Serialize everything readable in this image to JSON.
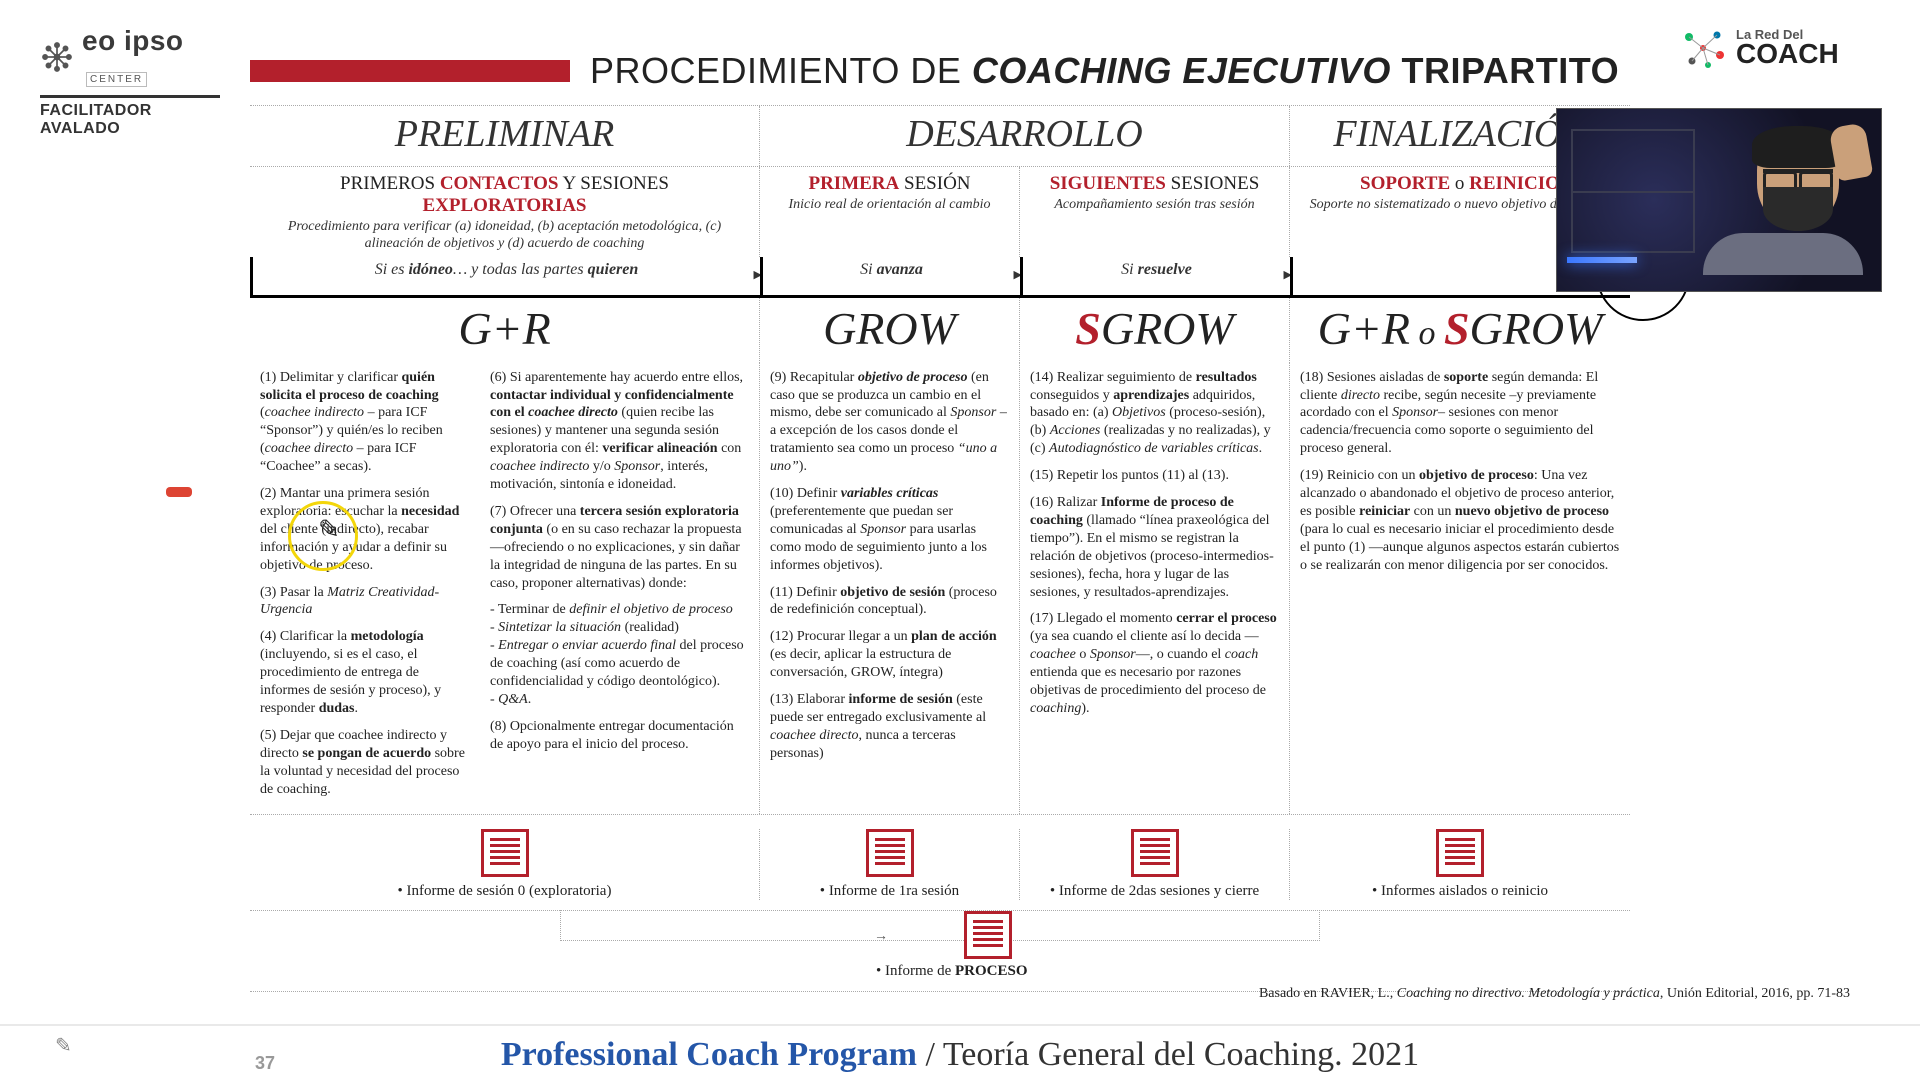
{
  "slide_number": "37",
  "logos": {
    "left": {
      "main": "eo ipso",
      "tag": "CENTER",
      "sub": "FACILITADOR AVALADO"
    },
    "right": {
      "small": "La Red Del",
      "big": "COACH"
    }
  },
  "title": {
    "prefix": "PROCEDIMIENTO DE",
    "italic": "COACHING EJECUTIVO",
    "suffix": "TRIPARTITO",
    "bar_color": "#b3202c"
  },
  "phases": {
    "p1": "PRELIMINAR",
    "p2": "DESARROLLO",
    "p3": "FINALIZACIÓN"
  },
  "headers": {
    "c1": {
      "t1": "PRIMEROS ",
      "t2": "CONTACTOS",
      "t3": " Y SESIONES  ",
      "t4": "EXPLORATORIAS",
      "sub": "Procedimiento para verificar (a) idoneidad, (b) aceptación metodológica, (c) alineación de objetivos y (d) acuerdo de coaching"
    },
    "c2": {
      "t2": "PRIMERA",
      "t3": " SESIÓN",
      "sub": "Inicio real de orientación al cambio"
    },
    "c3": {
      "t2": "SIGUIENTES",
      "t3": " SESIONES",
      "sub": "Acompañamiento sesión tras sesión"
    },
    "c4": {
      "t2": "SOPORTE",
      "mid": " o ",
      "t3": "REINICIO",
      "sub": "Soporte no sistematizado o nuevo objetivo de proceso"
    }
  },
  "timeline": {
    "t1": {
      "pre": "Si es ",
      "b": "idóneo",
      "post": "… y todas las partes ",
      "b2": "quieren"
    },
    "t2": {
      "pre": "Si ",
      "b": "avanza"
    },
    "t3": {
      "pre": "Si ",
      "b": "resuelve"
    }
  },
  "methods": {
    "m1": "G+R",
    "m2": "GROW",
    "m3_pre": "S",
    "m3": "GROW",
    "m4_1": "G+R",
    "m4_mid": " o ",
    "m4_2pre": "S",
    "m4_2": "GROW"
  },
  "body": {
    "c1a": [
      "(1) Delimitar y clarificar <b>quién solicita el proceso de coaching</b> (<i>coachee indirecto</i> – para ICF “Sponsor”) y quién/es lo reciben (<i>coachee directo</i> – para ICF “Coachee” a secas).",
      "(2) Mantar una primera sesión exploratoria: escuchar la <b>necesidad</b> del cliente (indirecto), recabar información y ayudar a definir su objetivo de proceso.",
      "(3) Pasar la <i>Matriz Creatividad-Urgencia</i>",
      "(4) Clarificar la <b>metodología</b> (incluyendo, si es el caso, el procedimiento de entrega de informes de sesión y proceso), y responder <b>dudas</b>.",
      "(5) Dejar que coachee indirecto y directo <b>se pongan de acuerdo</b> sobre la voluntad y necesidad del proceso de coaching."
    ],
    "c1b": [
      "(6) Si aparentemente hay acuerdo entre ellos, <b>contactar individual y confidencialmente con el <i>coachee directo</i></b> (quien recibe las sesiones) y mantener una segunda sesión exploratoria con él: <b>verificar alineación</b> con <i>coachee indirecto</i> y/o <i>Sponsor</i>, interés, motivación, sintonía e idoneidad.",
      "(7) Ofrecer una <b>tercera sesión exploratoria conjunta</b> (o en su caso rechazar la propuesta —ofreciendo o no explicaciones, y sin dañar la integridad de ninguna de las partes. En su caso, proponer alternativas) donde:",
      "- Terminar de <i>definir el objetivo de proceso</i><br>- <i>Sintetizar la situación</i> (realidad)<br>- <i>Entregar o enviar acuerdo final</i> del proceso de coaching (así como acuerdo de confidencialidad y código deontológico).<br>- <i>Q&A</i>.",
      "(8) Opcionalmente entregar documentación de apoyo para el inicio del proceso."
    ],
    "c2": [
      "(9) Recapitular <b><i>objetivo de proceso</i></b> (en caso que se produzca un cambio en el mismo, debe ser comunicado al <i>Sponsor</i> –a excepción de los casos donde el tratamiento sea como un proceso <i>“uno a uno”</i>).",
      "(10) Definir <b><i>variables críticas</i></b> (preferentemente que puedan ser comunicadas al <i>Sponsor</i> para usarlas como modo de seguimiento junto a los informes objetivos).",
      "(11) Definir <b>objetivo de sesión</b> (proceso de redefinición conceptual).",
      "(12) Procurar llegar a un <b>plan de acción</b> (es decir, aplicar la estructura de conversación, GROW, íntegra)",
      "(13) Elaborar <b>informe de sesión</b> (este puede ser entregado exclusivamente al <i>coachee directo</i>, nunca a terceras personas)"
    ],
    "c3": [
      "(14) Realizar seguimiento de <b>resultados</b> conseguidos y <b>aprendizajes</b> adquiridos, basado en: (a) <i>Objetivos</i> (proceso-sesión), (b) <i>Acciones</i> (realizadas y no realizadas), y (c) <i>Autodiagnóstico de variables críticas</i>.",
      "(15) Repetir los puntos (11) al (13).",
      "(16) Ralizar <b>Informe de proceso de coaching</b> (llamado “línea praxeológica del tiempo”). En el mismo se registran la relación de objetivos (proceso-intermedios-sesiones), fecha, hora y lugar de las sesiones, y resultados-aprendizajes.",
      "(17) Llegado el momento <b>cerrar el proceso</b> (ya sea cuando el cliente así lo decida —<i>coachee</i> o <i>Sponsor</i>—, o cuando el <i>coach</i> entienda que es necesario por razones objetivas de procedimiento del proceso de <i>coaching</i>)."
    ],
    "c4": [
      "(18) Sesiones aisladas de <b>soporte</b> según demanda: El cliente <i>directo</i> recibe, según necesite –y previamente acordado con el <i>Sponsor</i>– sesiones con menor cadencia/frecuencia como soporte o seguimiento del proceso general.",
      "(19) Reinicio con un <b>objetivo de proceso</b>: Una vez alcanzado o abandonado el objetivo de proceso anterior, es posible <b>reiniciar</b> con un <b>nuevo objetivo de proceso</b> (para lo cual es necesario iniciar el procedimiento desde el punto (1) —aunque algunos aspectos estarán cubiertos o se realizarán con menor diligencia por ser conocidos."
    ]
  },
  "reports": {
    "r1": "Informe de sesión 0 (exploratoria)",
    "r2": "Informe de 1ra sesión",
    "r3": "Informe de 2das sesiones y cierre",
    "r4": "Informes aislados o reinicio",
    "proc_pre": "Informe de ",
    "proc_b": "PROCESO"
  },
  "source": {
    "pre": "Basado en RAVIER, L., ",
    "ital": "Coaching no directivo. Metodología y práctica",
    "post": ", Unión Editorial, 2016, pp. 71-83"
  },
  "footer": {
    "p1": "Professional Coach Program",
    "sep": " / ",
    "p2": "Teoría General del Coaching. 2021"
  },
  "colors": {
    "accent": "#b3202c",
    "highlight": "#f3d60a",
    "footer_blue": "#2456a8"
  },
  "annotations": {
    "highlight_circle": true,
    "red_tick": true,
    "pen_cursor": true
  },
  "webcam_label": "presenter-webcam"
}
